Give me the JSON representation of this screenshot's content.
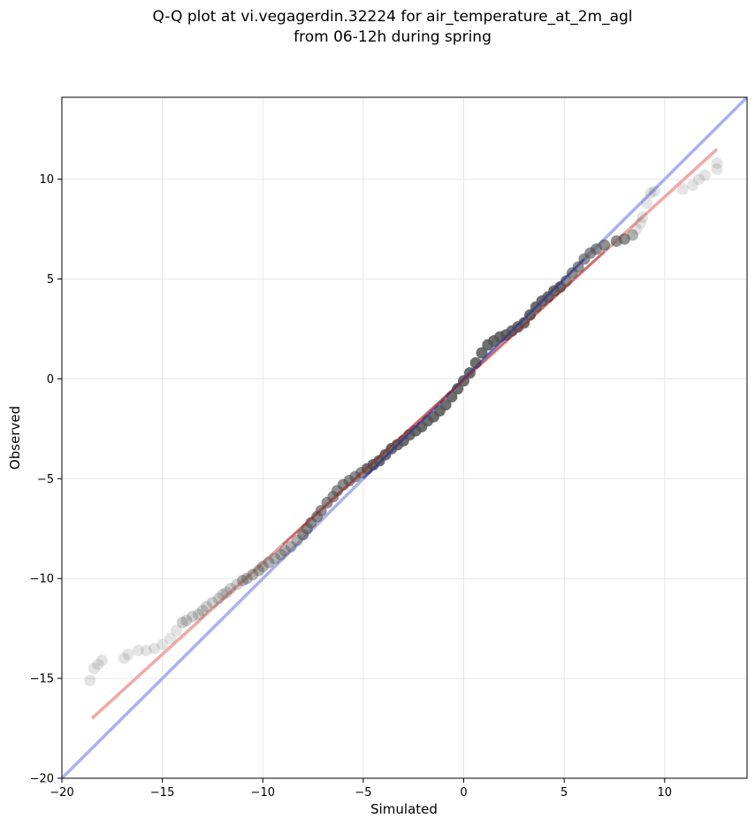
{
  "chart_data": {
    "type": "scatter",
    "title": "Q-Q plot at vi.vegagerdin.32224 for air_temperature_at_2m_agl",
    "subtitle": "from 06-12h during spring",
    "xlabel": "Simulated",
    "ylabel": "Observed",
    "xlim": [
      -20,
      14.1
    ],
    "ylim": [
      -20,
      14.1
    ],
    "x_ticks": [
      -20,
      -15,
      -10,
      -5,
      0,
      5,
      10
    ],
    "y_ticks": [
      -20,
      -15,
      -10,
      -5,
      0,
      5,
      10
    ],
    "grid": true,
    "colors": {
      "points": "#555555",
      "identity_line": "#aab0f2",
      "fit_line": "#f2a8a8",
      "dense_identity": "#2a2aa0",
      "dense_fit": "#a02020",
      "grid": "#e6e6e6"
    },
    "series": [
      {
        "type": "scatter",
        "points": [
          [
            -18.6,
            -15.1
          ],
          [
            -18.4,
            -14.5
          ],
          [
            -18.2,
            -14.3
          ],
          [
            -18.0,
            -14.1
          ],
          [
            -16.9,
            -14.0
          ],
          [
            -16.7,
            -13.8
          ],
          [
            -16.2,
            -13.6
          ],
          [
            -15.8,
            -13.6
          ],
          [
            -15.4,
            -13.5
          ],
          [
            -15.0,
            -13.3
          ],
          [
            -14.6,
            -13.0
          ],
          [
            -14.3,
            -12.6
          ],
          [
            -14.0,
            -12.2
          ],
          [
            -13.8,
            -12.1
          ],
          [
            -13.5,
            -11.9
          ],
          [
            -13.2,
            -11.8
          ],
          [
            -13.0,
            -11.6
          ],
          [
            -12.8,
            -11.4
          ],
          [
            -12.5,
            -11.2
          ],
          [
            -12.2,
            -11.0
          ],
          [
            -12.0,
            -10.8
          ],
          [
            -11.8,
            -10.7
          ],
          [
            -11.6,
            -10.5
          ],
          [
            -11.3,
            -10.3
          ],
          [
            -11.0,
            -10.1
          ],
          [
            -10.8,
            -10.0
          ],
          [
            -10.5,
            -9.8
          ],
          [
            -10.2,
            -9.6
          ],
          [
            -10.0,
            -9.4
          ],
          [
            -9.7,
            -9.2
          ],
          [
            -9.4,
            -9.0
          ],
          [
            -9.1,
            -8.8
          ],
          [
            -8.9,
            -8.6
          ],
          [
            -8.6,
            -8.4
          ],
          [
            -8.3,
            -8.1
          ],
          [
            -8.0,
            -7.8
          ],
          [
            -7.8,
            -7.5
          ],
          [
            -7.6,
            -7.2
          ],
          [
            -7.3,
            -6.9
          ],
          [
            -7.1,
            -6.6
          ],
          [
            -6.8,
            -6.2
          ],
          [
            -6.5,
            -5.9
          ],
          [
            -6.3,
            -5.6
          ],
          [
            -6.0,
            -5.3
          ],
          [
            -5.7,
            -5.1
          ],
          [
            -5.4,
            -4.9
          ],
          [
            -5.1,
            -4.7
          ],
          [
            -4.8,
            -4.5
          ],
          [
            -4.5,
            -4.3
          ],
          [
            -4.2,
            -4.1
          ],
          [
            -3.9,
            -3.8
          ],
          [
            -3.6,
            -3.5
          ],
          [
            -3.3,
            -3.3
          ],
          [
            -3.0,
            -3.1
          ],
          [
            -2.7,
            -2.8
          ],
          [
            -2.4,
            -2.6
          ],
          [
            -2.1,
            -2.4
          ],
          [
            -1.8,
            -2.1
          ],
          [
            -1.5,
            -1.9
          ],
          [
            -1.2,
            -1.6
          ],
          [
            -0.9,
            -1.3
          ],
          [
            -0.6,
            -0.9
          ],
          [
            -0.3,
            -0.5
          ],
          [
            0.0,
            -0.1
          ],
          [
            0.3,
            0.3
          ],
          [
            0.6,
            0.8
          ],
          [
            0.9,
            1.3
          ],
          [
            1.2,
            1.7
          ],
          [
            1.5,
            1.9
          ],
          [
            1.8,
            2.1
          ],
          [
            2.1,
            2.2
          ],
          [
            2.4,
            2.4
          ],
          [
            2.7,
            2.6
          ],
          [
            3.0,
            2.8
          ],
          [
            3.3,
            3.2
          ],
          [
            3.6,
            3.6
          ],
          [
            3.9,
            3.9
          ],
          [
            4.2,
            4.1
          ],
          [
            4.5,
            4.4
          ],
          [
            4.8,
            4.6
          ],
          [
            5.1,
            4.9
          ],
          [
            5.4,
            5.3
          ],
          [
            5.7,
            5.6
          ],
          [
            6.0,
            6.0
          ],
          [
            6.3,
            6.3
          ],
          [
            6.6,
            6.5
          ],
          [
            7.0,
            6.7
          ],
          [
            7.6,
            6.9
          ],
          [
            8.0,
            7.0
          ],
          [
            8.4,
            7.2
          ],
          [
            8.6,
            7.5
          ],
          [
            8.8,
            7.8
          ],
          [
            8.9,
            8.1
          ],
          [
            9.1,
            8.8
          ],
          [
            9.3,
            9.3
          ],
          [
            9.5,
            9.4
          ],
          [
            10.9,
            9.5
          ],
          [
            11.4,
            9.7
          ],
          [
            11.7,
            10.0
          ],
          [
            12.0,
            10.2
          ],
          [
            12.6,
            10.5
          ],
          [
            12.6,
            10.8
          ]
        ]
      }
    ],
    "lines": [
      {
        "name_hidden": true,
        "kind": "identity",
        "from": [
          -20,
          -20
        ],
        "to": [
          14.1,
          14.1
        ]
      },
      {
        "name_hidden": true,
        "kind": "fit",
        "from": [
          -18.5,
          -17.0
        ],
        "to": [
          12.6,
          11.5
        ]
      }
    ]
  }
}
